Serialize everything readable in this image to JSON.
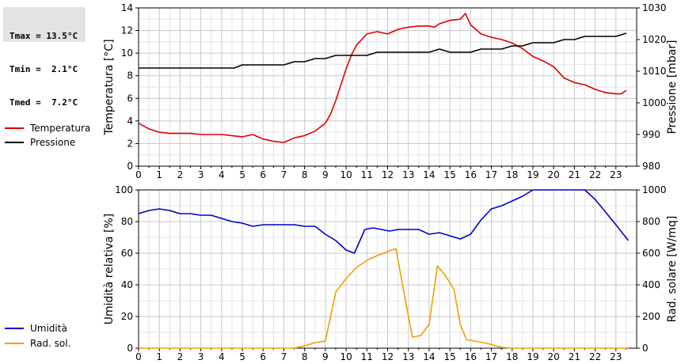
{
  "stats": {
    "tmax": "Tmax = 13.5°C",
    "tmin": "Tmin =  2.1°C",
    "tmed": "Tmed =  7.2°C"
  },
  "legend_top": [
    {
      "label": "Temperatura",
      "color": "#dd0000"
    },
    {
      "label": "Pressione",
      "color": "#000000"
    }
  ],
  "legend_bottom": [
    {
      "label": "Umidità",
      "color": "#0000cc"
    },
    {
      "label": "Rad. sol.",
      "color": "#f0a000"
    }
  ],
  "chart_data": [
    {
      "type": "line",
      "x_ticks": [
        "0",
        "1",
        "2",
        "3",
        "4",
        "5",
        "6",
        "7",
        "8",
        "9",
        "10",
        "11",
        "12",
        "13",
        "14",
        "15",
        "16",
        "17",
        "18",
        "19",
        "20",
        "21",
        "22",
        "23"
      ],
      "xlim": [
        0,
        24
      ],
      "grid": true,
      "ylabel_left": "Temperatura [°C]",
      "ylabel_right": "Pressione [mbar]",
      "ylim_left": [
        0,
        14
      ],
      "yticks_left": [
        "0",
        "2",
        "4",
        "6",
        "8",
        "10",
        "12",
        "14"
      ],
      "ylim_right": [
        980,
        1030
      ],
      "yticks_right": [
        "980",
        "990",
        "1000",
        "1010",
        "1020",
        "1030"
      ],
      "legend": "left",
      "series": [
        {
          "name": "Temperatura",
          "axis": "left",
          "color": "#dd0000",
          "x": [
            0,
            0.5,
            1,
            1.5,
            2,
            2.5,
            3,
            3.5,
            4,
            4.5,
            5,
            5.5,
            6,
            6.5,
            7,
            7.5,
            8,
            8.5,
            9,
            9.25,
            9.5,
            9.75,
            10,
            10.25,
            10.5,
            10.75,
            11,
            11.5,
            12,
            12.5,
            13,
            13.5,
            14,
            14.25,
            14.5,
            15,
            15.5,
            15.75,
            16,
            16.5,
            17,
            17.5,
            18,
            18.5,
            19,
            19.5,
            20,
            20.5,
            21,
            21.5,
            22,
            22.5,
            23,
            23.25,
            23.5
          ],
          "y": [
            3.8,
            3.3,
            3.0,
            2.9,
            2.9,
            2.9,
            2.8,
            2.8,
            2.8,
            2.7,
            2.6,
            2.8,
            2.4,
            2.2,
            2.1,
            2.5,
            2.7,
            3.1,
            3.8,
            4.6,
            5.8,
            7.2,
            8.6,
            9.8,
            10.7,
            11.2,
            11.7,
            11.9,
            11.7,
            12.1,
            12.3,
            12.4,
            12.4,
            12.3,
            12.6,
            12.9,
            13.0,
            13.5,
            12.5,
            11.7,
            11.4,
            11.2,
            10.9,
            10.4,
            9.7,
            9.3,
            8.8,
            7.8,
            7.4,
            7.2,
            6.8,
            6.5,
            6.4,
            6.4,
            6.7
          ]
        },
        {
          "name": "Pressione",
          "axis": "right",
          "color": "#000000",
          "x": [
            0,
            1,
            2,
            3,
            4,
            4.6,
            5,
            5.5,
            6,
            6.5,
            7,
            7.5,
            8,
            8.5,
            9,
            9.5,
            10,
            10.5,
            11,
            11.5,
            12,
            12.5,
            13,
            13.5,
            14,
            14.5,
            15,
            15.5,
            16,
            16.5,
            17,
            17.5,
            18,
            18.5,
            19,
            19.5,
            20,
            20.5,
            21,
            21.5,
            22,
            22.5,
            23,
            23.5
          ],
          "y": [
            1011,
            1011,
            1011,
            1011,
            1011,
            1011,
            1012,
            1012,
            1012,
            1012,
            1012,
            1013,
            1013,
            1014,
            1014,
            1015,
            1015,
            1015,
            1015,
            1016,
            1016,
            1016,
            1016,
            1016,
            1016,
            1017,
            1016,
            1016,
            1016,
            1017,
            1017,
            1017,
            1018,
            1018,
            1019,
            1019,
            1019,
            1020,
            1020,
            1021,
            1021,
            1021,
            1021,
            1022
          ]
        }
      ]
    },
    {
      "type": "line",
      "x_ticks": [
        "0",
        "1",
        "2",
        "3",
        "4",
        "5",
        "6",
        "7",
        "8",
        "9",
        "10",
        "11",
        "12",
        "13",
        "14",
        "15",
        "16",
        "17",
        "18",
        "19",
        "20",
        "21",
        "22",
        "23"
      ],
      "xlim": [
        0,
        24
      ],
      "grid": true,
      "ylabel_left": "Umidità relativa [%]",
      "ylabel_right": "Rad. solare [W/mq]",
      "ylim_left": [
        0,
        100
      ],
      "yticks_left": [
        "0",
        "20",
        "40",
        "60",
        "80",
        "100"
      ],
      "ylim_right": [
        0,
        1000
      ],
      "yticks_right": [
        "0",
        "200",
        "400",
        "600",
        "800",
        "1000"
      ],
      "legend": "left",
      "series": [
        {
          "name": "Umidità",
          "axis": "left",
          "color": "#0000cc",
          "x": [
            0,
            0.5,
            1,
            1.5,
            2,
            2.5,
            3,
            3.5,
            4,
            4.5,
            5,
            5.5,
            6,
            6.5,
            7,
            7.5,
            8,
            8.5,
            9,
            9.5,
            10,
            10.4,
            10.9,
            11.3,
            11.7,
            12.1,
            12.5,
            13,
            13.5,
            14,
            14.5,
            15,
            15.5,
            16,
            16.5,
            17,
            17.5,
            18,
            18.5,
            19,
            19.5,
            20,
            20.5,
            21,
            21.5,
            22,
            22.5,
            23,
            23.6
          ],
          "y": [
            85,
            87,
            88,
            87,
            85,
            85,
            84,
            84,
            82,
            80,
            79,
            77,
            78,
            78,
            78,
            78,
            77,
            77,
            72,
            68,
            62,
            60,
            75,
            76,
            75,
            74,
            75,
            75,
            75,
            72,
            73,
            71,
            69,
            72,
            81,
            88,
            90,
            93,
            96,
            100,
            100,
            100,
            100,
            100,
            100,
            94,
            86,
            78,
            68
          ]
        },
        {
          "name": "Rad. sol.",
          "axis": "right",
          "color": "#f0a000",
          "x": [
            0,
            7,
            7.5,
            8,
            8.5,
            9,
            9.5,
            10,
            10.5,
            11,
            11.5,
            12,
            12.4,
            12.8,
            13.2,
            13.6,
            14,
            14.4,
            14.8,
            15.2,
            15.5,
            15.8,
            16.2,
            16.8,
            17.5,
            18,
            18.5,
            19,
            20,
            21,
            22,
            23,
            23.6
          ],
          "y": [
            0,
            0,
            0,
            15,
            35,
            45,
            355,
            440,
            510,
            555,
            585,
            610,
            630,
            340,
            70,
            80,
            150,
            520,
            455,
            370,
            150,
            55,
            45,
            30,
            5,
            0,
            0,
            0,
            0,
            0,
            0,
            0,
            0
          ]
        }
      ]
    }
  ]
}
